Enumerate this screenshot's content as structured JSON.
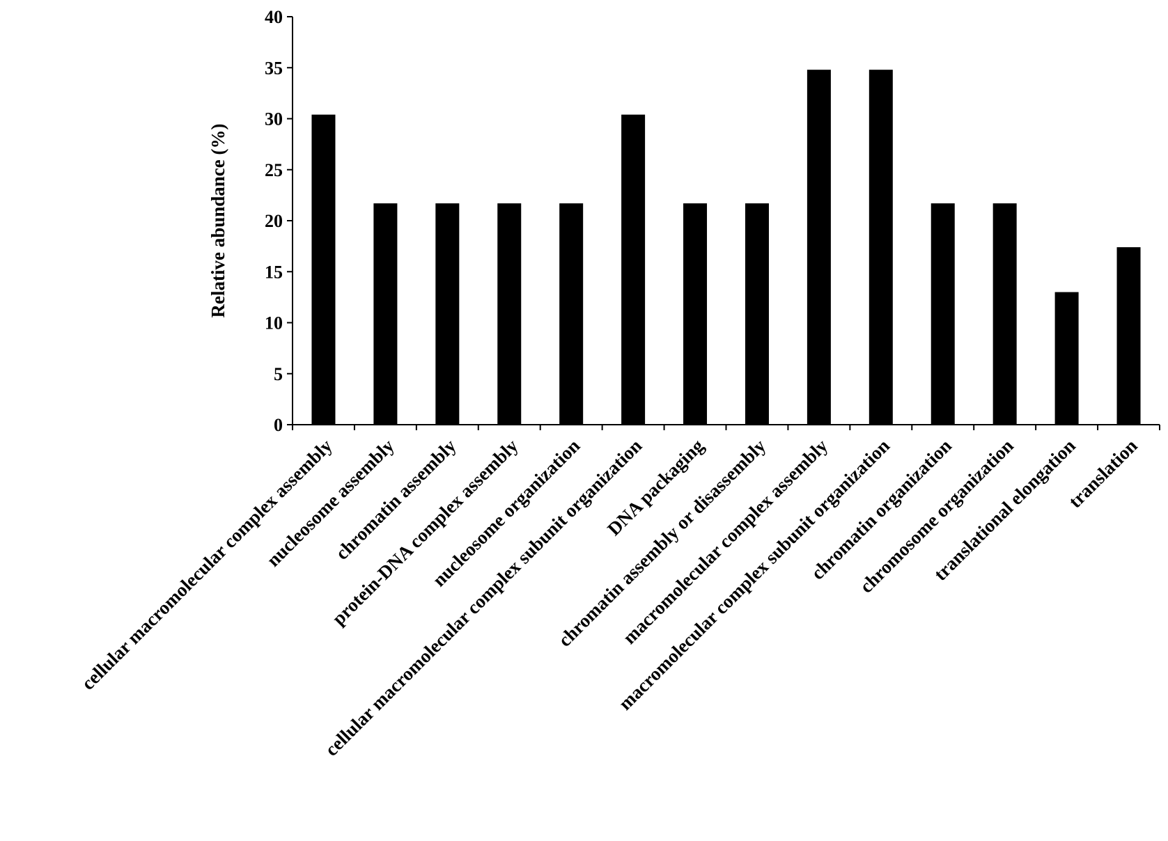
{
  "chart_data": {
    "type": "bar",
    "title": "",
    "xlabel": "",
    "ylabel": "Relative abundance (%)",
    "ylim": [
      0,
      40
    ],
    "yticks": [
      0,
      5,
      10,
      15,
      20,
      25,
      30,
      35,
      40
    ],
    "grid": false,
    "legend": "none",
    "bar_color": "#000000",
    "categories": [
      "cellular macromolecular complex assembly",
      "nucleosome assembly",
      "chromatin assembly",
      "protein-DNA complex assembly",
      "nucleosome organization",
      "cellular macromolecular complex subunit organization",
      "DNA packaging",
      "chromatin assembly or disassembly",
      "macromolecular complex assembly",
      "macromolecular complex subunit organization",
      "chromatin organization",
      "chromosome organization",
      "translational elongation",
      "translation"
    ],
    "values": [
      30.4,
      21.7,
      21.7,
      21.7,
      21.7,
      30.4,
      21.7,
      21.7,
      34.8,
      34.8,
      21.7,
      21.7,
      13.0,
      17.4
    ]
  }
}
